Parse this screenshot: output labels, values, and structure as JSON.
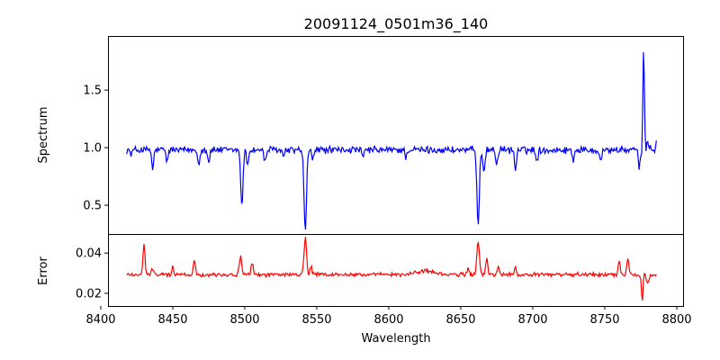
{
  "chart_data": {
    "type": "line",
    "title": "20091124_0501m36_140",
    "xlabel": "Wavelength",
    "xlim": [
      8405,
      8805
    ],
    "xticks": [
      "8400",
      "8450",
      "8500",
      "8550",
      "8600",
      "8650",
      "8700",
      "8750",
      "8800"
    ],
    "x_start": 8418,
    "x_end": 8786,
    "panels": [
      {
        "name": "spectrum",
        "ylabel": "Spectrum",
        "ylim": [
          0.25,
          1.97
        ],
        "yticks": [
          "0.5",
          "1.0",
          "1.5"
        ],
        "color": "#0000ff",
        "baseline": 0.98,
        "noise": 0.025,
        "features": [
          {
            "x": 8421,
            "depth": -0.04,
            "width": 1.0
          },
          {
            "x": 8436,
            "depth": -0.18,
            "width": 0.9
          },
          {
            "x": 8446,
            "depth": -0.1,
            "width": 1.0
          },
          {
            "x": 8468,
            "depth": -0.12,
            "width": 1.0
          },
          {
            "x": 8475,
            "depth": -0.1,
            "width": 1.0
          },
          {
            "x": 8498,
            "depth": -0.5,
            "width": 1.1
          },
          {
            "x": 8502,
            "depth": -0.12,
            "width": 1.0
          },
          {
            "x": 8514,
            "depth": -0.1,
            "width": 1.1
          },
          {
            "x": 8527,
            "depth": -0.06,
            "width": 1.0
          },
          {
            "x": 8542,
            "depth": -0.72,
            "width": 1.2
          },
          {
            "x": 8547,
            "depth": -0.08,
            "width": 1.0
          },
          {
            "x": 8582,
            "depth": -0.07,
            "width": 1.0
          },
          {
            "x": 8612,
            "depth": -0.06,
            "width": 1.0
          },
          {
            "x": 8662,
            "depth": -0.65,
            "width": 1.2
          },
          {
            "x": 8666,
            "depth": -0.18,
            "width": 1.0
          },
          {
            "x": 8675,
            "depth": -0.12,
            "width": 1.0
          },
          {
            "x": 8688,
            "depth": -0.18,
            "width": 0.9
          },
          {
            "x": 8703,
            "depth": -0.09,
            "width": 1.0
          },
          {
            "x": 8728,
            "depth": -0.08,
            "width": 1.0
          },
          {
            "x": 8747,
            "depth": -0.1,
            "width": 1.0
          },
          {
            "x": 8774,
            "depth": -0.15,
            "width": 1.0
          },
          {
            "x": 8777,
            "depth": 0.92,
            "width": 0.7
          },
          {
            "x": 8780,
            "depth": 0.06,
            "width": 1.2
          },
          {
            "x": 8786,
            "depth": 0.12,
            "width": 0.6
          }
        ]
      },
      {
        "name": "error",
        "ylabel": "Error",
        "ylim": [
          0.0137,
          0.0495
        ],
        "yticks": [
          "0.02",
          "0.04"
        ],
        "color": "#ff0000",
        "baseline": 0.0293,
        "noise": 0.0008,
        "features": [
          {
            "x": 8430,
            "depth": 0.0145,
            "width": 1.0
          },
          {
            "x": 8436,
            "depth": 0.003,
            "width": 1.0
          },
          {
            "x": 8450,
            "depth": 0.004,
            "width": 1.0
          },
          {
            "x": 8465,
            "depth": 0.007,
            "width": 1.0
          },
          {
            "x": 8497,
            "depth": 0.009,
            "width": 1.1
          },
          {
            "x": 8505,
            "depth": 0.006,
            "width": 1.0
          },
          {
            "x": 8542,
            "depth": 0.0185,
            "width": 1.2
          },
          {
            "x": 8546,
            "depth": 0.004,
            "width": 1.0
          },
          {
            "x": 8625,
            "depth": 0.002,
            "width": 8.0
          },
          {
            "x": 8655,
            "depth": 0.003,
            "width": 1.0
          },
          {
            "x": 8662,
            "depth": 0.017,
            "width": 1.2
          },
          {
            "x": 8668,
            "depth": 0.008,
            "width": 1.0
          },
          {
            "x": 8676,
            "depth": 0.004,
            "width": 1.0
          },
          {
            "x": 8688,
            "depth": 0.003,
            "width": 1.0
          },
          {
            "x": 8760,
            "depth": 0.007,
            "width": 1.0
          },
          {
            "x": 8766,
            "depth": 0.008,
            "width": 1.0
          },
          {
            "x": 8776,
            "depth": -0.0135,
            "width": 0.7
          },
          {
            "x": 8780,
            "depth": -0.004,
            "width": 1.5
          }
        ]
      }
    ]
  }
}
